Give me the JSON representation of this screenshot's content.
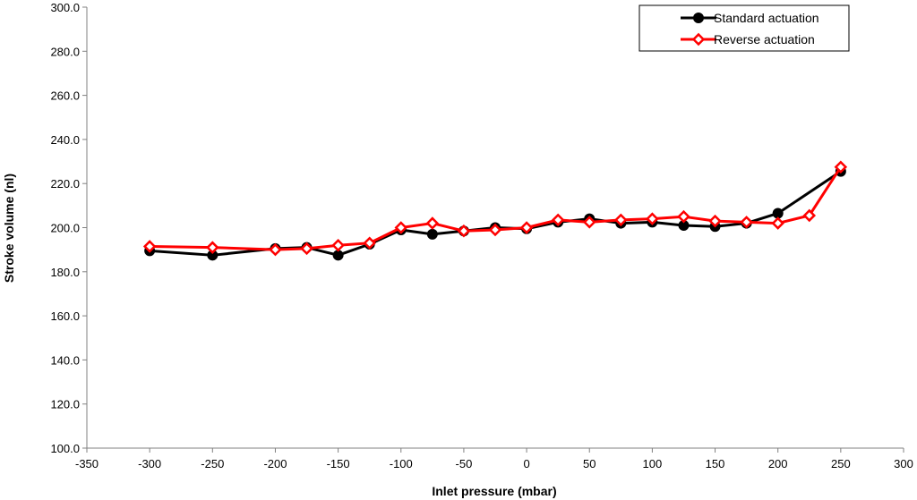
{
  "chart_data": {
    "type": "line",
    "title": "",
    "xlabel": "Inlet pressure (mbar)",
    "ylabel": "Stroke volume (nl)",
    "xlim": [
      -350,
      300
    ],
    "ylim": [
      100,
      300
    ],
    "xticks": [
      "-350",
      "-300",
      "-250",
      "-200",
      "-150",
      "-100",
      "-50",
      "0",
      "50",
      "100",
      "150",
      "200",
      "250",
      "300"
    ],
    "yticks": [
      "100.0",
      "120.0",
      "140.0",
      "160.0",
      "180.0",
      "200.0",
      "220.0",
      "240.0",
      "260.0",
      "280.0",
      "300.0"
    ],
    "grid": false,
    "legend_position": "top-right",
    "series": [
      {
        "name": "Standard actuation",
        "color": "#000000",
        "marker": "filled-circle",
        "x": [
          -300,
          -250,
          -200,
          -175,
          -150,
          -125,
          -100,
          -75,
          -50,
          -25,
          0,
          25,
          50,
          75,
          100,
          125,
          150,
          175,
          200,
          250
        ],
        "y": [
          189.5,
          187.5,
          190.5,
          191.0,
          187.5,
          192.5,
          199.0,
          197.0,
          198.5,
          200.0,
          199.5,
          202.5,
          204.0,
          202.0,
          202.5,
          201.0,
          200.5,
          202.0,
          206.5,
          225.5
        ]
      },
      {
        "name": "Reverse actuation",
        "color": "#ff0000",
        "marker": "open-diamond",
        "x": [
          -300,
          -250,
          -200,
          -175,
          -150,
          -125,
          -100,
          -75,
          -50,
          -25,
          0,
          25,
          50,
          75,
          100,
          125,
          150,
          175,
          200,
          225,
          250
        ],
        "y": [
          191.5,
          191.0,
          190.0,
          190.5,
          192.0,
          193.0,
          200.0,
          202.0,
          198.5,
          199.0,
          200.0,
          203.5,
          202.5,
          203.5,
          204.0,
          205.0,
          203.0,
          202.5,
          202.0,
          205.5,
          227.5
        ]
      }
    ]
  }
}
